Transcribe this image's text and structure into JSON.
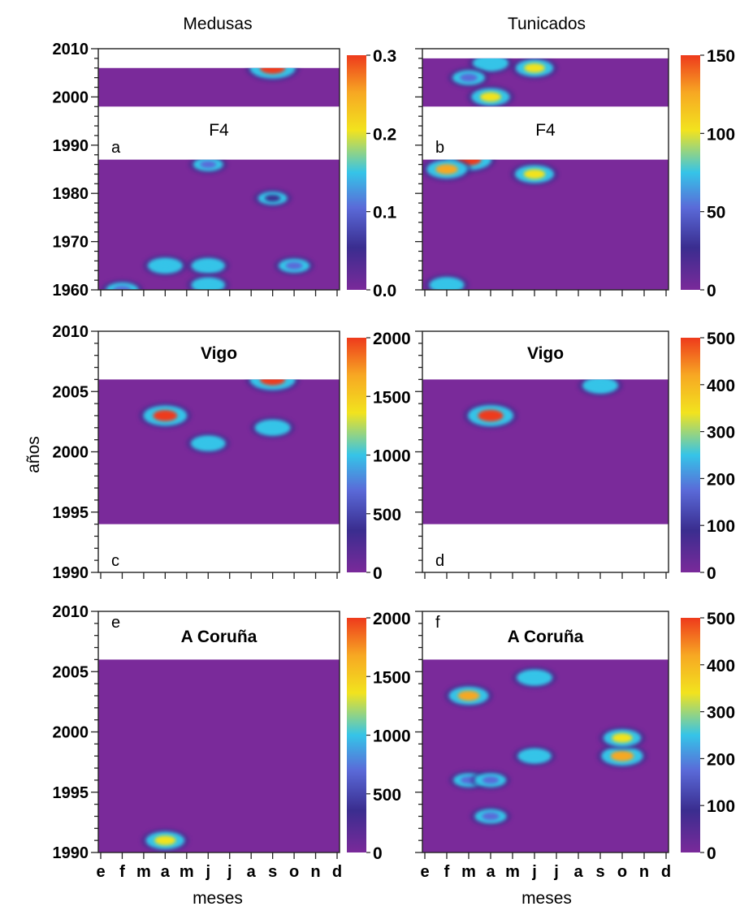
{
  "columns": [
    "Medusas",
    "Tunicados"
  ],
  "y_axis_label": "años",
  "x_axis_label": "meses",
  "colors": {
    "low": "#7a2a9a",
    "dark": "#3a2d8f",
    "cyan": "#35c4e8",
    "yellow": "#f2e31e",
    "orange": "#f7a823",
    "red": "#ee3a1c"
  },
  "chart_data": [
    {
      "panel": "a",
      "type": "heatmap",
      "title": "F4",
      "column": "Medusas",
      "x": [
        "e",
        "f",
        "m",
        "a",
        "m",
        "j",
        "j",
        "a",
        "s",
        "o",
        "n",
        "d"
      ],
      "ylim": [
        1960,
        2010
      ],
      "yticks": [
        1960,
        1970,
        1980,
        1990,
        2000,
        2010
      ],
      "colorbar": {
        "ticks": [
          "0.0",
          "0.1",
          "0.2",
          "0.3"
        ],
        "max": 0.3
      },
      "data_years": [
        [
          1960,
          1987
        ],
        [
          1998,
          2006
        ]
      ],
      "hotspots": [
        {
          "month": "s",
          "year": 2006,
          "value": 0.3
        },
        {
          "month": "a",
          "year": 1965,
          "value": 0.14
        },
        {
          "month": "j",
          "year": 1965,
          "value": 0.12
        },
        {
          "month": "j",
          "year": 1961,
          "value": 0.12
        },
        {
          "month": "f",
          "year": 1960,
          "value": 0.1
        },
        {
          "month": "o",
          "year": 1965,
          "value": 0.08
        },
        {
          "month": "j",
          "year": 1986,
          "value": 0.06
        },
        {
          "month": "s",
          "year": 1979,
          "value": 0.05
        }
      ]
    },
    {
      "panel": "b",
      "type": "heatmap",
      "title": "F4",
      "column": "Tunicados",
      "x": [
        "e",
        "f",
        "m",
        "a",
        "m",
        "j",
        "j",
        "a",
        "s",
        "o",
        "n",
        "d"
      ],
      "ylim": [
        1960,
        2010
      ],
      "yticks": [
        1960,
        1970,
        1980,
        1990,
        2000,
        2010
      ],
      "colorbar": {
        "ticks": [
          "0",
          "50",
          "100",
          "150"
        ],
        "max": 150
      },
      "data_years": [
        [
          1960,
          1987
        ],
        [
          1998,
          2008
        ]
      ],
      "hotspots": [
        {
          "month": "m",
          "year": 1987,
          "value": 150
        },
        {
          "month": "f",
          "year": 1985,
          "value": 110
        },
        {
          "month": "j",
          "year": 1984,
          "value": 100
        },
        {
          "month": "j",
          "year": 2006,
          "value": 90
        },
        {
          "month": "a",
          "year": 2000,
          "value": 95
        },
        {
          "month": "a",
          "year": 2007,
          "value": 75
        },
        {
          "month": "f",
          "year": 1961,
          "value": 70
        },
        {
          "month": "m",
          "year": 2004,
          "value": 50
        }
      ]
    },
    {
      "panel": "c",
      "type": "heatmap",
      "title": "Vigo",
      "column": "Medusas",
      "x": [
        "e",
        "f",
        "m",
        "a",
        "m",
        "j",
        "j",
        "a",
        "s",
        "o",
        "n",
        "d"
      ],
      "ylim": [
        1990,
        2010
      ],
      "yticks": [
        1990,
        1995,
        2000,
        2005,
        2010
      ],
      "colorbar": {
        "ticks": [
          "0",
          "500",
          "1000",
          "1500",
          "2000"
        ],
        "max": 2000
      },
      "data_years": [
        [
          1994,
          2006
        ]
      ],
      "hotspots": [
        {
          "month": "s",
          "year": 2006,
          "value": 2000
        },
        {
          "month": "a",
          "year": 2003,
          "value": 1800
        },
        {
          "month": "s",
          "year": 2002,
          "value": 1000
        },
        {
          "month": "j",
          "year": 2000.7,
          "value": 900
        }
      ]
    },
    {
      "panel": "d",
      "type": "heatmap",
      "title": "Vigo",
      "column": "Tunicados",
      "x": [
        "e",
        "f",
        "m",
        "a",
        "m",
        "j",
        "j",
        "a",
        "s",
        "o",
        "n",
        "d"
      ],
      "ylim": [
        1990,
        2010
      ],
      "yticks": [
        1990,
        1995,
        2000,
        2005,
        2010
      ],
      "colorbar": {
        "ticks": [
          "0",
          "100",
          "200",
          "300",
          "400",
          "500"
        ],
        "max": 500
      },
      "data_years": [
        [
          1994,
          2006
        ]
      ],
      "hotspots": [
        {
          "month": "a",
          "year": 2003,
          "value": 500
        },
        {
          "month": "s",
          "year": 2005.5,
          "value": 250
        }
      ]
    },
    {
      "panel": "e",
      "type": "heatmap",
      "title": "A Coruña",
      "column": "Medusas",
      "x": [
        "e",
        "f",
        "m",
        "a",
        "m",
        "j",
        "j",
        "a",
        "s",
        "o",
        "n",
        "d"
      ],
      "ylim": [
        1990,
        2010
      ],
      "yticks": [
        1990,
        1995,
        2000,
        2005,
        2010
      ],
      "colorbar": {
        "ticks": [
          "0",
          "500",
          "1000",
          "1500",
          "2000"
        ],
        "max": 2000
      },
      "data_years": [
        [
          1990,
          2006
        ]
      ],
      "hotspots": [
        {
          "month": "a",
          "year": 1991,
          "value": 1300
        }
      ]
    },
    {
      "panel": "f",
      "type": "heatmap",
      "title": "A Coruña",
      "column": "Tunicados",
      "x": [
        "e",
        "f",
        "m",
        "a",
        "m",
        "j",
        "j",
        "a",
        "s",
        "o",
        "n",
        "d"
      ],
      "ylim": [
        1990,
        2010
      ],
      "yticks": [
        1990,
        1995,
        2000,
        2005,
        2010
      ],
      "colorbar": {
        "ticks": [
          "0",
          "100",
          "200",
          "300",
          "400",
          "500"
        ],
        "max": 500
      },
      "data_years": [
        [
          1990,
          2006
        ]
      ],
      "hotspots": [
        {
          "month": "m",
          "year": 2003,
          "value": 350
        },
        {
          "month": "j",
          "year": 2004.5,
          "value": 250
        },
        {
          "month": "o",
          "year": 1998,
          "value": 400
        },
        {
          "month": "o",
          "year": 1999.5,
          "value": 300
        },
        {
          "month": "j",
          "year": 1998,
          "value": 200
        },
        {
          "month": "a",
          "year": 1993,
          "value": 150
        },
        {
          "month": "m",
          "year": 1996,
          "value": 120
        },
        {
          "month": "a",
          "year": 1996,
          "value": 130
        }
      ]
    }
  ]
}
